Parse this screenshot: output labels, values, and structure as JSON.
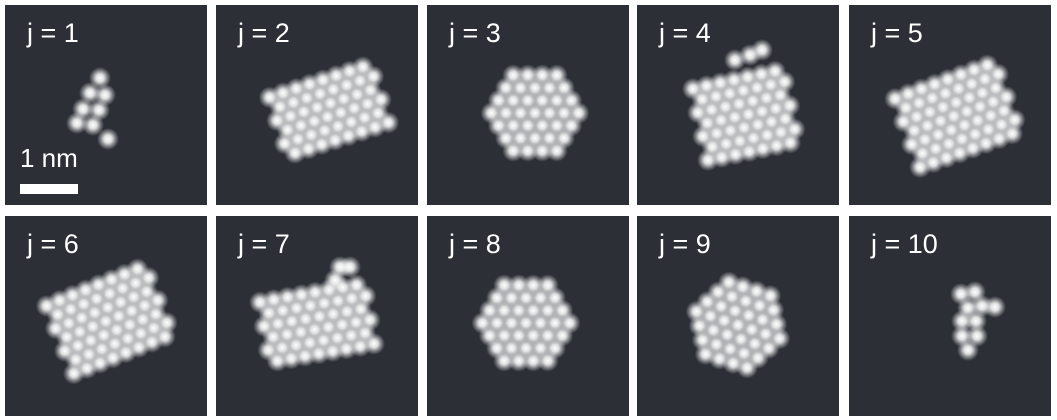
{
  "panels": [
    {
      "label": "j = 1"
    },
    {
      "label": "j = 2"
    },
    {
      "label": "j = 3"
    },
    {
      "label": "j = 4"
    },
    {
      "label": "j = 5"
    },
    {
      "label": "j = 6"
    },
    {
      "label": "j = 7"
    },
    {
      "label": "j = 8"
    },
    {
      "label": "j = 9"
    },
    {
      "label": "j = 10"
    }
  ],
  "scale_bar": {
    "label": "1 nm"
  },
  "colors": {
    "panel_background": "#2c2f36",
    "atom": "#ffffff",
    "label": "#ffffff"
  }
}
